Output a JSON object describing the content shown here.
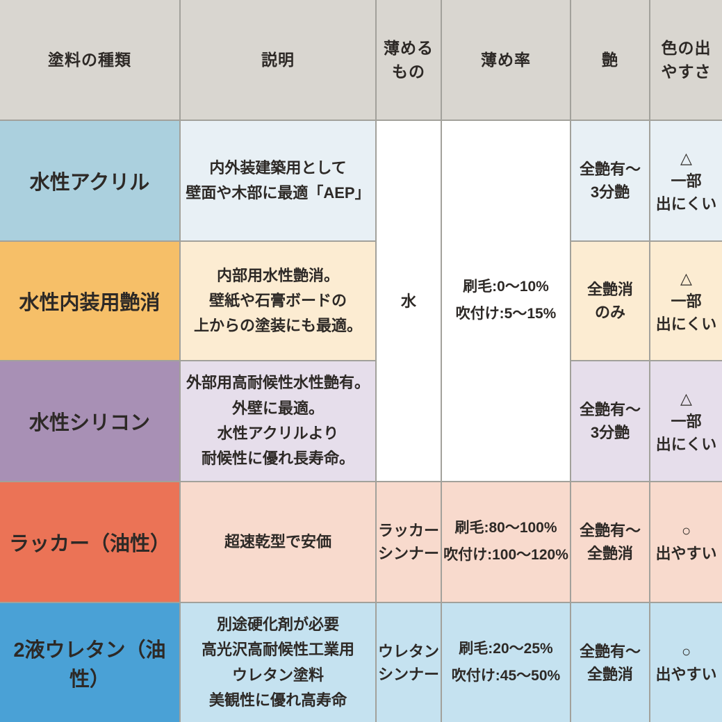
{
  "colors": {
    "border": "#a2a19b",
    "header_bg": "#d9d6d0",
    "text": "#2d2926",
    "white_cell": "#ffffff",
    "row1_label": "#abd0de",
    "row1_light": "#e8f0f5",
    "row2_label": "#f6bf68",
    "row2_light": "#fcecd2",
    "row3_label": "#a890b5",
    "row3_light": "#e6deeb",
    "row4_label": "#eb7356",
    "row4_light": "#f8dacd",
    "row5_label": "#4aa1d6",
    "row5_light": "#c5e2f0"
  },
  "headers": {
    "type": "塗料の種類",
    "description": "説明",
    "thinner": "薄める\nもの",
    "ratio": "薄め率",
    "gloss": "艶",
    "color_ease": "色の出\nやすさ"
  },
  "merged": {
    "thinner_rows1to3": "水",
    "ratio_rows1to3": "刷毛:0～10%\n吹付け:5～15%"
  },
  "rows": [
    {
      "type": "水性アクリル",
      "description": "内外装建築用として\n壁面や木部に最適「AEP」",
      "gloss": "全艶有～\n3分艶",
      "color_ease": "△\n一部\n出にくい"
    },
    {
      "type": "水性内装用艶消",
      "description": "内部用水性艶消。\n壁紙や石膏ボードの\n上からの塗装にも最適。",
      "gloss": "全艶消\nのみ",
      "color_ease": "△\n一部\n出にくい"
    },
    {
      "type": "水性シリコン",
      "description": "外部用高耐候性水性艶有。\n外壁に最適。\n水性アクリルより\n耐候性に優れ長寿命。",
      "gloss": "全艶有～\n3分艶",
      "color_ease": "△\n一部\n出にくい"
    },
    {
      "type": "ラッカー（油性）",
      "description": "超速乾型で安価",
      "thinner": "ラッカー\nシンナー",
      "ratio": "刷毛:80～100%\n吹付け:100～120%",
      "gloss": "全艶有～\n全艶消",
      "color_ease": "○\n出やすい"
    },
    {
      "type": "2液ウレタン（油性）",
      "description": "別途硬化剤が必要\n高光沢高耐候性工業用\nウレタン塗料\n美観性に優れ高寿命",
      "thinner": "ウレタン\nシンナー",
      "ratio": "刷毛:20～25%\n吹付け:45～50%",
      "gloss": "全艶有～\n全艶消",
      "color_ease": "○\n出やすい"
    }
  ],
  "chart_data": {
    "type": "table",
    "title": "塗料の種類 比較表",
    "columns": [
      "塗料の種類",
      "説明",
      "薄めるもの",
      "薄め率",
      "艶",
      "色の出やすさ"
    ],
    "rows": [
      [
        "水性アクリル",
        "内外装建築用として 壁面や木部に最適「AEP」",
        "水",
        "刷毛:0～10% 吹付け:5～15%",
        "全艶有～3分艶",
        "△ 一部出にくい"
      ],
      [
        "水性内装用艶消",
        "内部用水性艶消。壁紙や石膏ボードの上からの塗装にも最適。",
        "水",
        "刷毛:0～10% 吹付け:5～15%",
        "全艶消のみ",
        "△ 一部出にくい"
      ],
      [
        "水性シリコン",
        "外部用高耐候性水性艶有。外壁に最適。水性アクリルより耐候性に優れ長寿命。",
        "水",
        "刷毛:0～10% 吹付け:5～15%",
        "全艶有～3分艶",
        "△ 一部出にくい"
      ],
      [
        "ラッカー（油性）",
        "超速乾型で安価",
        "ラッカーシンナー",
        "刷毛:80～100% 吹付け:100～120%",
        "全艶有～全艶消",
        "○ 出やすい"
      ],
      [
        "2液ウレタン（油性）",
        "別途硬化剤が必要 高光沢高耐候性工業用ウレタン塗料 美観性に優れ高寿命",
        "ウレタンシンナー",
        "刷毛:20～25% 吹付け:45～50%",
        "全艶有～全艶消",
        "○ 出やすい"
      ]
    ],
    "layout_hints": {
      "merged_cells": "薄めるもの・薄め率 columns are merged across rows 1-3 (water-based paints)",
      "grid": "on"
    }
  }
}
